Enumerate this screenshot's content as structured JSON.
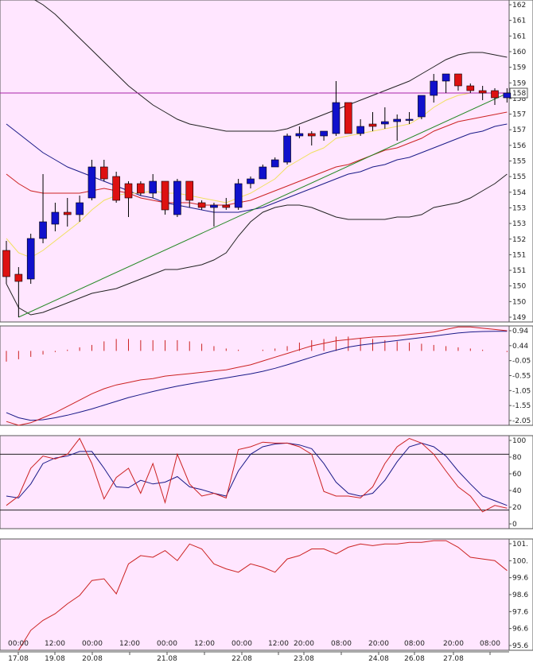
{
  "chart_data": {
    "type": "candlestick",
    "colors": {
      "background": "#ffe6ff",
      "bull": "#1010cc",
      "bear": "#dd1111",
      "upper_band": "#222222",
      "ema_yellow": "#f0e060",
      "ma_red": "#cc2222",
      "ma_blue": "#1a1a88",
      "trendline": "#228822",
      "hline": "#aa22aa",
      "macd_red": "#cc2222",
      "macd_blue": "#1a1a88",
      "stoch_red": "#cc2222",
      "stoch_dark": "#1a1a88",
      "bottom_line": "#cc2222",
      "grid_level": "#222222",
      "axis_line": "#555555"
    },
    "x_labels": [
      {
        "time": "00:00",
        "date": "17.08"
      },
      {
        "time": "12:00",
        "date": "19.08"
      },
      {
        "time": "00:00",
        "date": "20.08"
      },
      {
        "time": "12:00",
        "date": ""
      },
      {
        "time": "00:00",
        "date": "21.08"
      },
      {
        "time": "12:00",
        "date": ""
      },
      {
        "time": "00:00",
        "date": "22.08"
      },
      {
        "time": "12:00",
        "date": ""
      },
      {
        "time": "20:00",
        "date": "23.08"
      },
      {
        "time": "08:00",
        "date": ""
      },
      {
        "time": "20:00",
        "date": "24.08"
      },
      {
        "time": "08:00",
        "date": "26.08"
      },
      {
        "time": "20:00",
        "date": "27.08"
      },
      {
        "time": "08:00",
        "date": ""
      }
    ],
    "price_panel": {
      "yticks": [
        "162",
        "161",
        "161",
        "160",
        "159",
        "159",
        "158",
        "157",
        "157",
        "156",
        "155",
        "155",
        "154",
        "153",
        "153",
        "152",
        "151",
        "151",
        "150",
        "150",
        "149"
      ],
      "ylim": [
        149,
        162.5
      ],
      "current_price_label": "158",
      "current_price": 158.6,
      "candles": [
        {
          "o": 152.0,
          "h": 152.4,
          "l": 150.6,
          "c": 150.9
        },
        {
          "o": 151.0,
          "h": 151.3,
          "l": 149.2,
          "c": 150.7
        },
        {
          "o": 150.8,
          "h": 152.7,
          "l": 150.6,
          "c": 152.5
        },
        {
          "o": 152.5,
          "h": 155.2,
          "l": 152.3,
          "c": 153.2
        },
        {
          "o": 153.1,
          "h": 154.0,
          "l": 152.8,
          "c": 153.6
        },
        {
          "o": 153.6,
          "h": 154.2,
          "l": 153.0,
          "c": 153.5
        },
        {
          "o": 153.5,
          "h": 154.3,
          "l": 153.2,
          "c": 154.0
        },
        {
          "o": 154.2,
          "h": 155.8,
          "l": 154.1,
          "c": 155.5
        },
        {
          "o": 155.5,
          "h": 155.8,
          "l": 154.9,
          "c": 155.0
        },
        {
          "o": 155.1,
          "h": 155.3,
          "l": 154.0,
          "c": 154.1
        },
        {
          "o": 154.8,
          "h": 154.9,
          "l": 153.4,
          "c": 154.2
        },
        {
          "o": 154.8,
          "h": 154.9,
          "l": 154.3,
          "c": 154.4
        },
        {
          "o": 154.4,
          "h": 155.2,
          "l": 154.2,
          "c": 154.9
        },
        {
          "o": 154.9,
          "h": 154.9,
          "l": 153.5,
          "c": 153.7
        },
        {
          "o": 153.5,
          "h": 155.0,
          "l": 153.4,
          "c": 154.9
        },
        {
          "o": 154.9,
          "h": 154.9,
          "l": 153.8,
          "c": 154.1
        },
        {
          "o": 154.0,
          "h": 154.1,
          "l": 153.7,
          "c": 153.8
        },
        {
          "o": 153.8,
          "h": 154.0,
          "l": 153.0,
          "c": 153.9
        },
        {
          "o": 153.9,
          "h": 154.2,
          "l": 153.7,
          "c": 153.8
        },
        {
          "o": 153.8,
          "h": 155.0,
          "l": 153.7,
          "c": 154.8
        },
        {
          "o": 154.8,
          "h": 155.1,
          "l": 154.6,
          "c": 155.0
        },
        {
          "o": 155.0,
          "h": 155.6,
          "l": 155.0,
          "c": 155.5
        },
        {
          "o": 155.5,
          "h": 155.9,
          "l": 155.5,
          "c": 155.8
        },
        {
          "o": 155.7,
          "h": 156.9,
          "l": 155.6,
          "c": 156.8
        },
        {
          "o": 156.8,
          "h": 157.2,
          "l": 156.7,
          "c": 156.9
        },
        {
          "o": 156.9,
          "h": 157.0,
          "l": 156.4,
          "c": 156.8
        },
        {
          "o": 156.8,
          "h": 157.0,
          "l": 156.6,
          "c": 157.0
        },
        {
          "o": 156.9,
          "h": 159.1,
          "l": 156.8,
          "c": 158.2
        },
        {
          "o": 158.2,
          "h": 158.2,
          "l": 156.9,
          "c": 156.9
        },
        {
          "o": 156.9,
          "h": 157.5,
          "l": 156.8,
          "c": 157.2
        },
        {
          "o": 157.3,
          "h": 157.8,
          "l": 157.0,
          "c": 157.2
        },
        {
          "o": 157.3,
          "h": 158.0,
          "l": 157.1,
          "c": 157.4
        },
        {
          "o": 157.4,
          "h": 157.7,
          "l": 156.6,
          "c": 157.5
        },
        {
          "o": 157.5,
          "h": 157.8,
          "l": 157.3,
          "c": 157.5
        },
        {
          "o": 157.6,
          "h": 158.5,
          "l": 157.5,
          "c": 158.5
        },
        {
          "o": 158.5,
          "h": 159.4,
          "l": 158.2,
          "c": 159.1
        },
        {
          "o": 159.1,
          "h": 159.4,
          "l": 158.6,
          "c": 159.4
        },
        {
          "o": 159.4,
          "h": 159.4,
          "l": 158.7,
          "c": 158.9
        },
        {
          "o": 158.9,
          "h": 159.0,
          "l": 158.6,
          "c": 158.7
        },
        {
          "o": 158.7,
          "h": 158.9,
          "l": 158.3,
          "c": 158.6
        },
        {
          "o": 158.7,
          "h": 158.8,
          "l": 158.1,
          "c": 158.4
        },
        {
          "o": 158.4,
          "h": 158.8,
          "l": 158.2,
          "c": 158.6
        }
      ],
      "upper_band": [
        163.2,
        162.9,
        162.6,
        162.3,
        161.9,
        161.4,
        160.9,
        160.4,
        159.9,
        159.4,
        158.9,
        158.5,
        158.1,
        157.8,
        157.5,
        157.3,
        157.2,
        157.1,
        157.0,
        157.0,
        157.0,
        157.0,
        157.0,
        157.1,
        157.3,
        157.5,
        157.7,
        157.9,
        158.1,
        158.3,
        158.5,
        158.7,
        158.9,
        159.1,
        159.4,
        159.7,
        160.0,
        160.2,
        160.3,
        160.3,
        160.2,
        160.1
      ],
      "lower_band": [
        150.6,
        149.6,
        149.3,
        149.4,
        149.6,
        149.8,
        150.0,
        150.2,
        150.3,
        150.4,
        150.6,
        150.8,
        151.0,
        151.2,
        151.2,
        151.3,
        151.4,
        151.6,
        151.9,
        152.6,
        153.2,
        153.6,
        153.8,
        153.9,
        153.9,
        153.8,
        153.6,
        153.4,
        153.3,
        153.3,
        153.3,
        153.3,
        153.4,
        153.4,
        153.5,
        153.8,
        153.9,
        154.0,
        154.2,
        154.5,
        154.8,
        155.2
      ],
      "ema_yellow": [
        152.5,
        151.9,
        151.7,
        152.0,
        152.4,
        152.8,
        153.2,
        153.7,
        154.1,
        154.3,
        154.4,
        154.4,
        154.5,
        154.4,
        154.4,
        154.3,
        154.2,
        154.1,
        154.0,
        154.2,
        154.4,
        154.7,
        155.0,
        155.5,
        155.8,
        156.1,
        156.3,
        156.7,
        156.8,
        156.9,
        157.0,
        157.1,
        157.2,
        157.3,
        157.6,
        158.0,
        158.3,
        158.5,
        158.6,
        158.6,
        158.6,
        158.6
      ],
      "ma_red": [
        155.2,
        154.8,
        154.5,
        154.4,
        154.4,
        154.4,
        154.4,
        154.5,
        154.6,
        154.5,
        154.4,
        154.2,
        154.1,
        154.0,
        154.0,
        154.0,
        153.9,
        153.9,
        153.9,
        154.0,
        154.1,
        154.3,
        154.5,
        154.7,
        154.9,
        155.1,
        155.3,
        155.5,
        155.6,
        155.8,
        156.0,
        156.2,
        156.3,
        156.5,
        156.7,
        157.0,
        157.2,
        157.4,
        157.5,
        157.6,
        157.7,
        157.8
      ],
      "ma_blue": [
        157.3,
        156.9,
        156.5,
        156.1,
        155.8,
        155.5,
        155.3,
        155.1,
        154.9,
        154.7,
        154.5,
        154.3,
        154.2,
        154.0,
        153.9,
        153.8,
        153.7,
        153.6,
        153.6,
        153.6,
        153.7,
        153.8,
        154.0,
        154.2,
        154.4,
        154.6,
        154.8,
        155.0,
        155.2,
        155.3,
        155.5,
        155.6,
        155.8,
        155.9,
        156.1,
        156.3,
        156.5,
        156.7,
        156.9,
        157.0,
        157.2,
        157.3
      ],
      "trendline": {
        "from": {
          "index": 1,
          "value": 149.2
        },
        "to": {
          "index": 41.5,
          "value": 158.7
        }
      }
    },
    "macd_panel": {
      "yticks": [
        "0.94",
        "0.44",
        "-0.05",
        "-0.55",
        "-1.05",
        "-1.55",
        "-2.05"
      ],
      "ylim": [
        -3.0,
        0.94
      ],
      "histogram": [
        -0.45,
        -0.35,
        -0.25,
        -0.15,
        -0.05,
        0.05,
        0.15,
        0.25,
        0.4,
        0.5,
        0.5,
        0.45,
        0.45,
        0.45,
        0.45,
        0.4,
        0.3,
        0.2,
        0.1,
        0.05,
        0.0,
        0.05,
        0.1,
        0.2,
        0.35,
        0.45,
        0.5,
        0.6,
        0.6,
        0.55,
        0.5,
        0.45,
        0.4,
        0.35,
        0.3,
        0.25,
        0.2,
        0.15,
        0.1,
        0.05,
        0.0,
        -0.05
      ],
      "line_red": [
        -2.85,
        -3.0,
        -2.9,
        -2.7,
        -2.5,
        -2.25,
        -2.0,
        -1.75,
        -1.55,
        -1.4,
        -1.3,
        -1.2,
        -1.15,
        -1.05,
        -1.0,
        -0.95,
        -0.9,
        -0.85,
        -0.8,
        -0.7,
        -0.6,
        -0.45,
        -0.3,
        -0.15,
        0.0,
        0.15,
        0.25,
        0.35,
        0.4,
        0.45,
        0.5,
        0.52,
        0.55,
        0.6,
        0.65,
        0.7,
        0.8,
        0.9,
        0.9,
        0.85,
        0.8,
        0.75
      ],
      "line_blue": [
        -2.5,
        -2.7,
        -2.8,
        -2.78,
        -2.7,
        -2.6,
        -2.48,
        -2.35,
        -2.2,
        -2.05,
        -1.9,
        -1.78,
        -1.66,
        -1.55,
        -1.45,
        -1.36,
        -1.28,
        -1.2,
        -1.12,
        -1.04,
        -0.96,
        -0.86,
        -0.74,
        -0.6,
        -0.45,
        -0.3,
        -0.15,
        -0.02,
        0.1,
        0.18,
        0.24,
        0.3,
        0.36,
        0.42,
        0.48,
        0.54,
        0.6,
        0.66,
        0.7,
        0.72,
        0.73,
        0.73
      ]
    },
    "stoch_panel": {
      "yticks": [
        "100",
        "80",
        "60",
        "40",
        "20",
        "0"
      ],
      "ylim": [
        0,
        100
      ],
      "levels": [
        80,
        20
      ],
      "line_red": [
        25,
        35,
        65,
        78,
        75,
        80,
        97,
        70,
        32,
        55,
        65,
        38,
        70,
        28,
        80,
        48,
        35,
        38,
        33,
        85,
        88,
        93,
        92,
        92,
        88,
        80,
        40,
        35,
        35,
        33,
        45,
        70,
        88,
        97,
        92,
        80,
        62,
        45,
        35,
        18,
        25,
        22
      ],
      "line_dark": [
        35,
        33,
        48,
        70,
        76,
        78,
        83,
        83,
        65,
        45,
        44,
        52,
        48,
        50,
        56,
        45,
        42,
        38,
        35,
        62,
        80,
        88,
        91,
        92,
        90,
        86,
        70,
        50,
        38,
        35,
        38,
        52,
        72,
        88,
        92,
        88,
        78,
        62,
        48,
        35,
        30,
        25
      ]
    },
    "bottom_panel": {
      "yticks": [
        "101.",
        "100.",
        "99.6",
        "98.6",
        "97.6",
        "96.6",
        "95.6"
      ],
      "ylim": [
        95.0,
        101.7
      ],
      "line": [
        94.5,
        95.0,
        96.2,
        96.8,
        97.2,
        97.8,
        98.3,
        99.2,
        99.3,
        98.4,
        100.2,
        100.7,
        100.6,
        101.0,
        100.4,
        101.4,
        101.1,
        100.2,
        99.9,
        99.7,
        100.2,
        100.0,
        99.7,
        100.5,
        100.7,
        101.1,
        101.1,
        100.8,
        101.2,
        101.4,
        101.3,
        101.4,
        101.4,
        101.5,
        101.5,
        101.6,
        101.6,
        101.2,
        100.6,
        100.5,
        100.4,
        99.8
      ]
    }
  }
}
